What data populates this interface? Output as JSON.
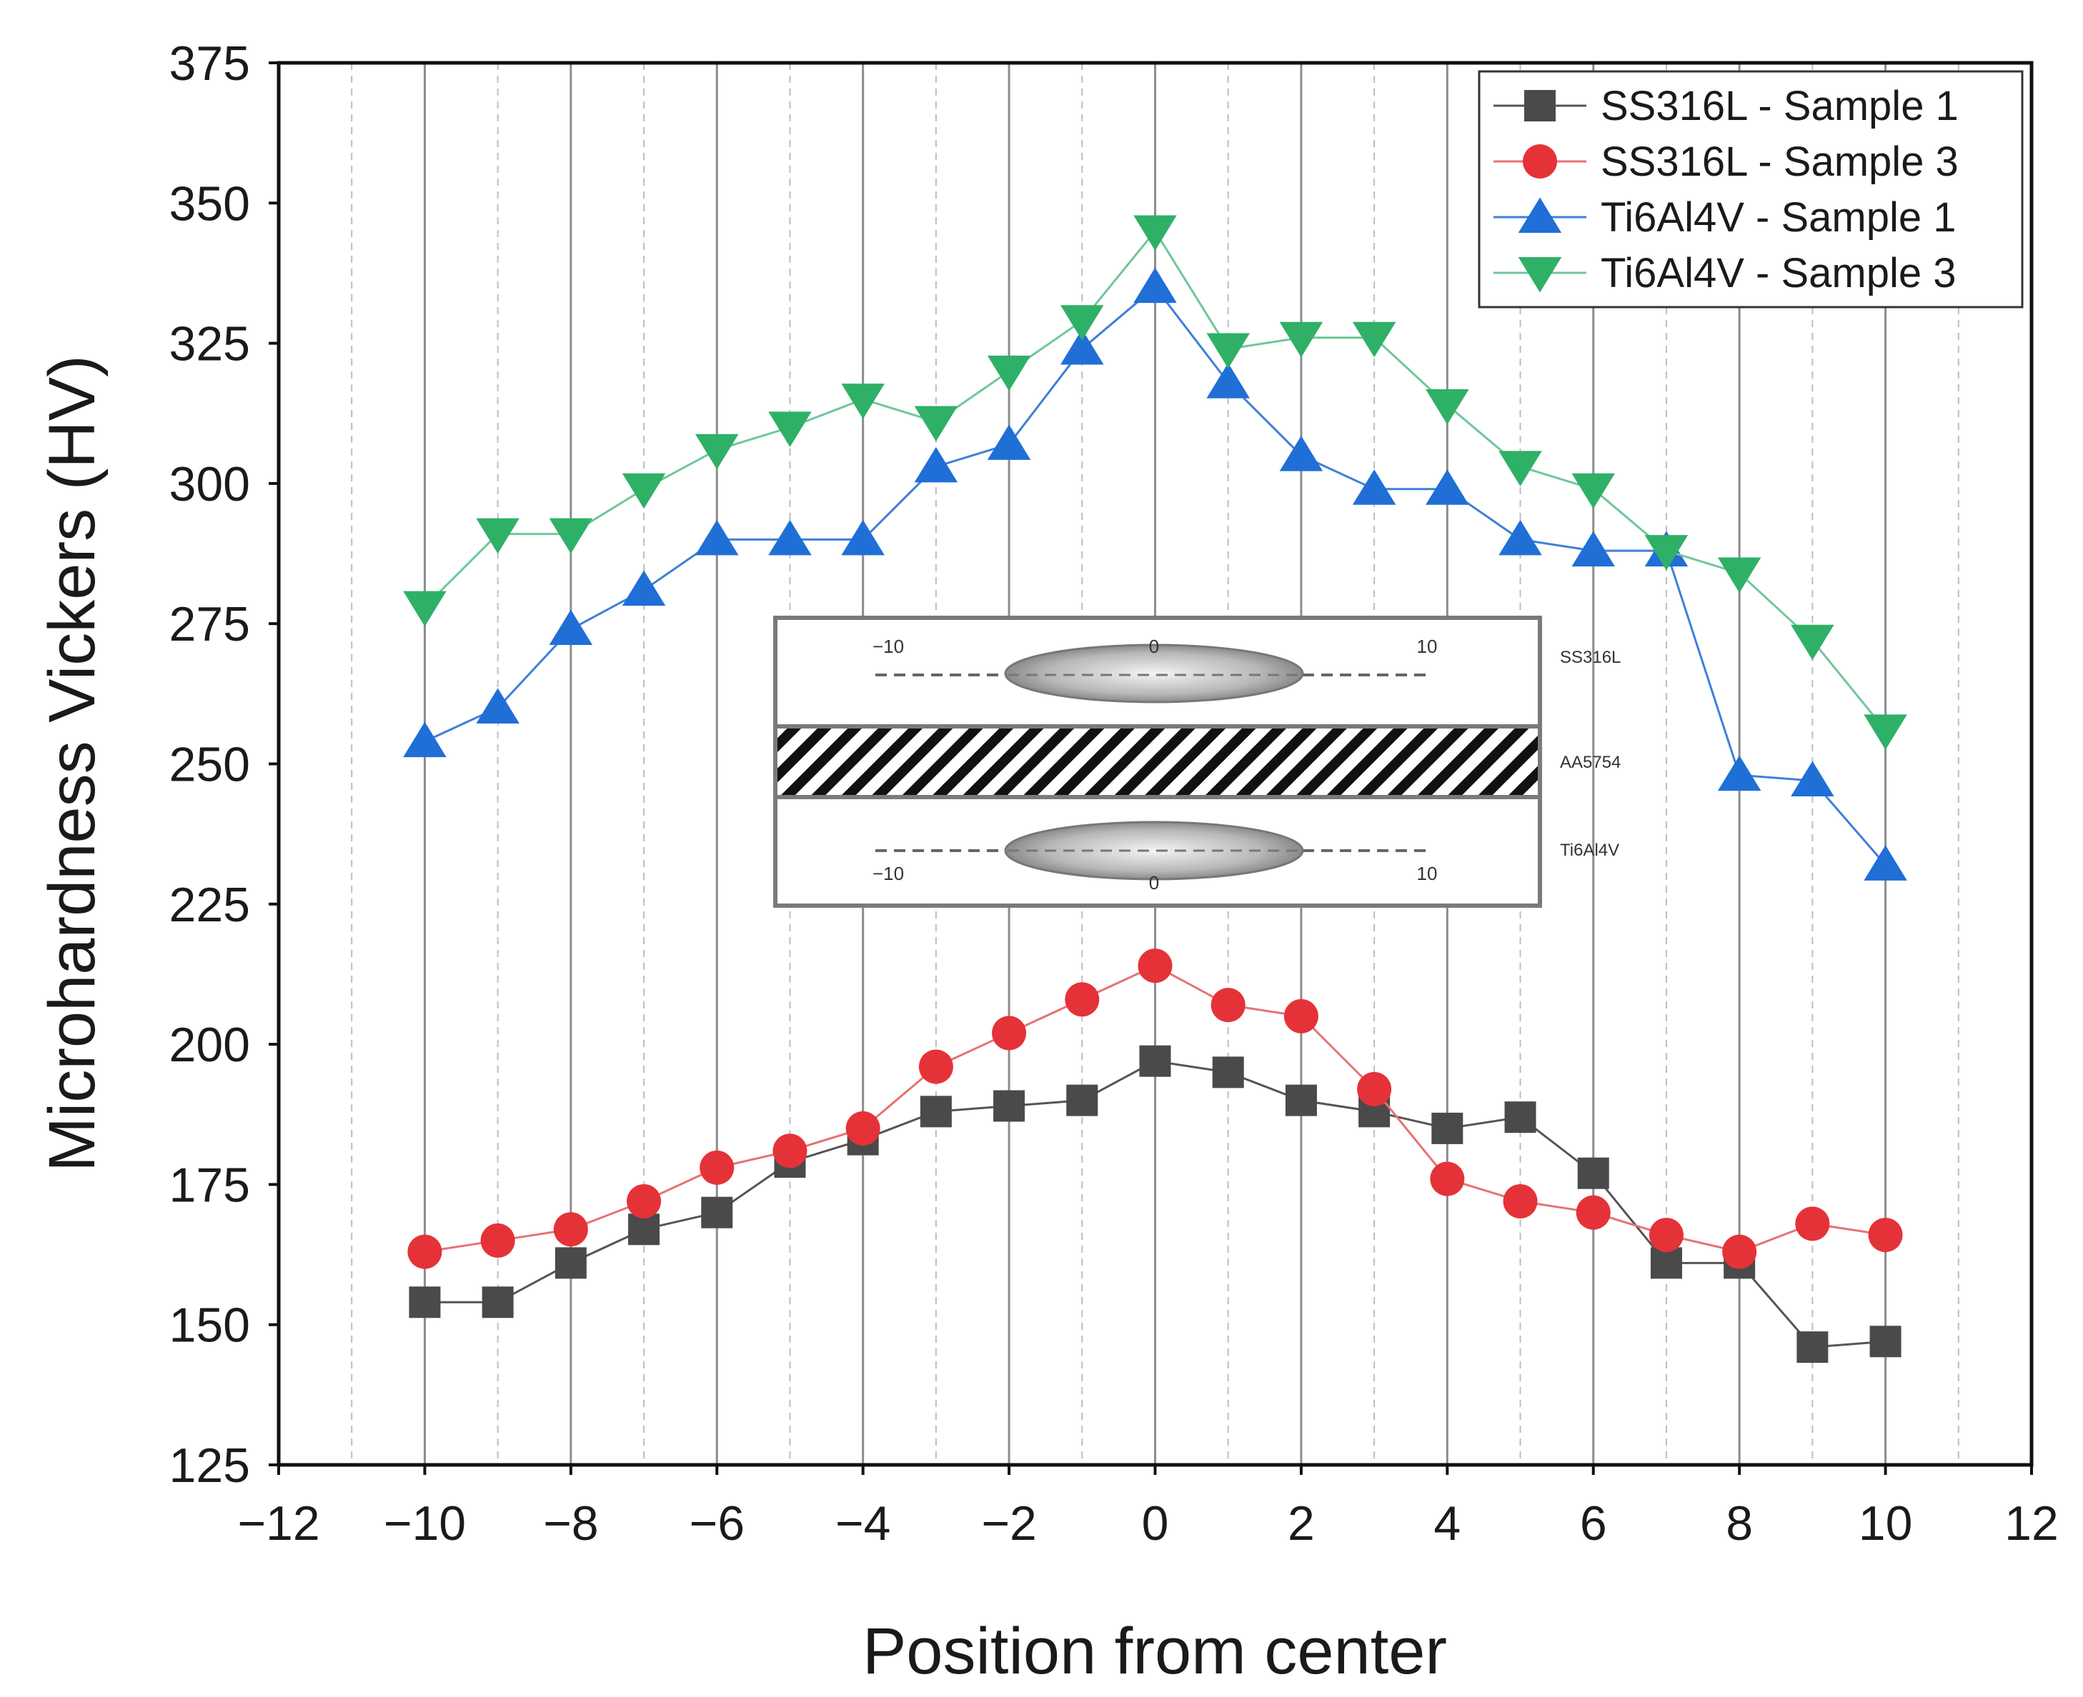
{
  "chart_data": {
    "type": "line",
    "xlabel": "Position from center",
    "ylabel": "Microhardness Vickers (HV)",
    "xlim": [
      -12,
      12
    ],
    "ylim": [
      125,
      375
    ],
    "xticks": [
      "−12",
      "−10",
      "−8",
      "−6",
      "−4",
      "−2",
      "0",
      "2",
      "4",
      "6",
      "8",
      "10",
      "12"
    ],
    "yticks": [
      "125",
      "150",
      "175",
      "200",
      "225",
      "250",
      "275",
      "300",
      "325",
      "350",
      "375"
    ],
    "grid": "vertical lines at every integer position (solid at even, dashed at odd)",
    "legend_position": "top-right",
    "x": [
      -10,
      -9,
      -8,
      -7,
      -6,
      -5,
      -4,
      -3,
      -2,
      -1,
      0,
      1,
      2,
      3,
      4,
      5,
      6,
      7,
      8,
      9,
      10
    ],
    "series": [
      {
        "name": "SS316L - Sample 1",
        "marker": "square",
        "marker_color": "#4a4a4a",
        "line_color": "#555555",
        "values": [
          154,
          154,
          161,
          167,
          170,
          179,
          183,
          188,
          189,
          190,
          197,
          195,
          190,
          188,
          185,
          187,
          177,
          161,
          161,
          146,
          147
        ]
      },
      {
        "name": "SS316L - Sample 3",
        "marker": "circle",
        "marker_color": "#e53238",
        "line_color": "#e57373",
        "values": [
          163,
          165,
          167,
          172,
          178,
          181,
          185,
          196,
          202,
          208,
          214,
          207,
          205,
          192,
          176,
          172,
          170,
          166,
          163,
          168,
          166
        ]
      },
      {
        "name": "Ti6Al4V - Sample 1",
        "marker": "triangle-up",
        "marker_color": "#1f6fd6",
        "line_color": "#3f7fd8",
        "values": [
          254,
          260,
          274,
          281,
          290,
          290,
          290,
          303,
          307,
          324,
          335,
          318,
          305,
          299,
          299,
          290,
          288,
          288,
          248,
          247,
          232
        ]
      },
      {
        "name": "Ti6Al4V - Sample 3",
        "marker": "triangle-down",
        "marker_color": "#2fb067",
        "line_color": "#6fc79a",
        "values": [
          278,
          291,
          291,
          299,
          306,
          310,
          315,
          311,
          320,
          329,
          345,
          324,
          326,
          326,
          314,
          303,
          299,
          288,
          284,
          272,
          256
        ]
      }
    ],
    "inset": {
      "layers": [
        "SS316L",
        "AA5754",
        "Ti6Al4V"
      ],
      "top_labels": [
        "−10",
        "0",
        "10"
      ],
      "bottom_labels": [
        "−10",
        "0",
        "10"
      ]
    }
  }
}
